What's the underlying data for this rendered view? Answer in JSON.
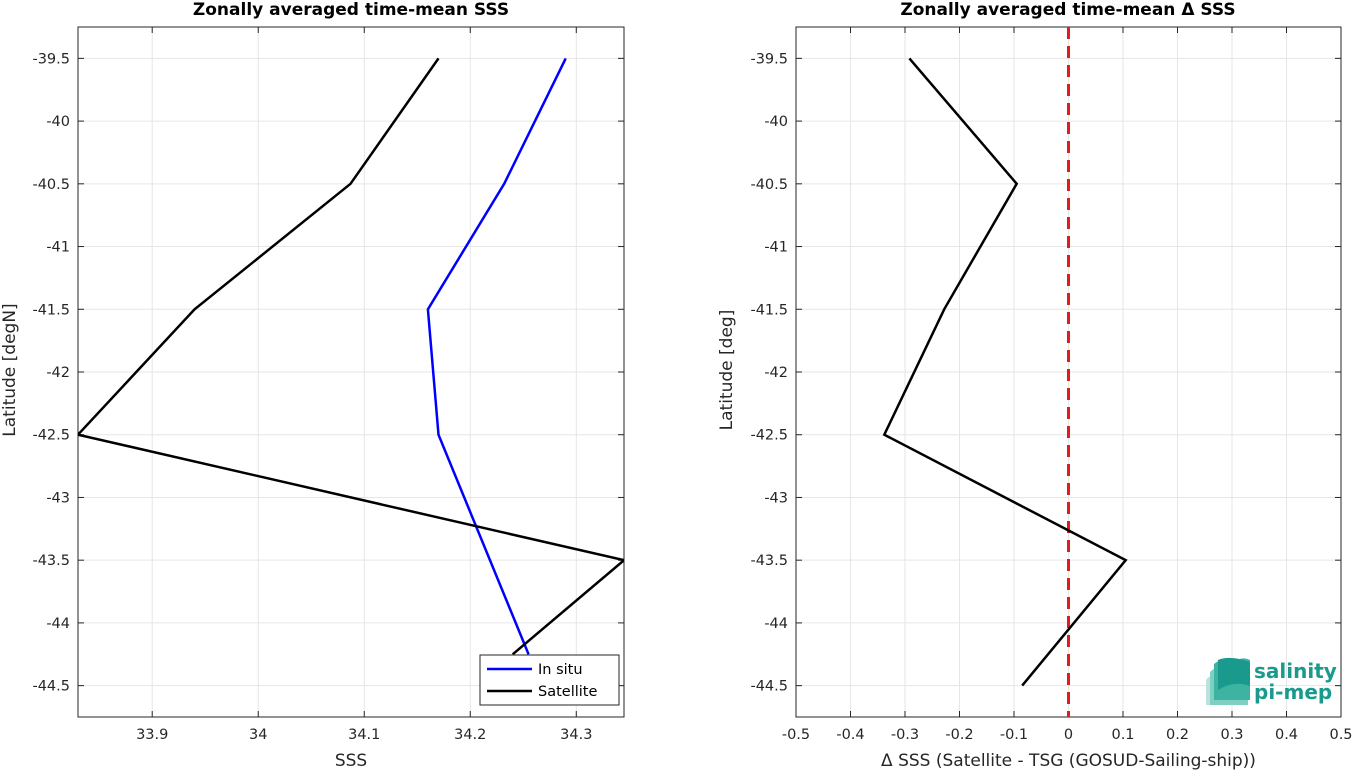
{
  "chart_data": [
    {
      "type": "line",
      "title": "Zonally averaged time-mean SSS",
      "xlabel": "SSS",
      "ylabel": "Latitude [degN]",
      "xlim": [
        33.83,
        34.345
      ],
      "ylim": [
        -44.75,
        -39.25
      ],
      "xticks": [
        "33.9",
        "34",
        "34.1",
        "34.2",
        "34.3"
      ],
      "yticks": [
        "-39.5",
        "-40",
        "-40.5",
        "-41",
        "-41.5",
        "-42",
        "-42.5",
        "-43",
        "-43.5",
        "-44",
        "-44.5"
      ],
      "grid": true,
      "legend": "bottom-right",
      "series": [
        {
          "name": "In situ",
          "color": "#0000ff",
          "x": [
            34.29,
            34.232,
            34.16,
            34.17,
            34.255
          ],
          "y": [
            -39.5,
            -40.5,
            -41.5,
            -42.5,
            -44.25
          ]
        },
        {
          "name": "Satellite",
          "color": "#000000",
          "x": [
            34.17,
            34.087,
            33.94,
            33.83,
            34.345,
            34.24
          ],
          "y": [
            -39.5,
            -40.5,
            -41.5,
            -42.5,
            -43.5,
            -44.25
          ]
        }
      ]
    },
    {
      "type": "line",
      "title": "Zonally averaged time-mean Δ SSS",
      "xlabel": "Δ SSS (Satellite - TSG (GOSUD-Sailing-ship))",
      "ylabel": "Latitude [deg]",
      "xlim": [
        -0.5,
        0.5
      ],
      "ylim": [
        -44.75,
        -39.25
      ],
      "xticks": [
        "-0.5",
        "-0.4",
        "-0.3",
        "-0.2",
        "-0.1",
        "0",
        "0.1",
        "0.2",
        "0.3",
        "0.4",
        "0.5"
      ],
      "yticks": [
        "-39.5",
        "-40",
        "-40.5",
        "-41",
        "-41.5",
        "-42",
        "-42.5",
        "-43",
        "-43.5",
        "-44",
        "-44.5"
      ],
      "grid": true,
      "reference_line": {
        "x": 0,
        "color": "#e41a1c",
        "style": "dashed"
      },
      "series": [
        {
          "color": "#000000",
          "x": [
            -0.292,
            -0.095,
            -0.228,
            -0.338,
            0.105,
            -0.085
          ],
          "y": [
            -39.5,
            -40.5,
            -41.5,
            -42.5,
            -43.5,
            -44.5
          ]
        }
      ]
    }
  ],
  "logo": {
    "line1": "salinity",
    "line2": "pi-mep",
    "color": "#1a9a8c"
  }
}
